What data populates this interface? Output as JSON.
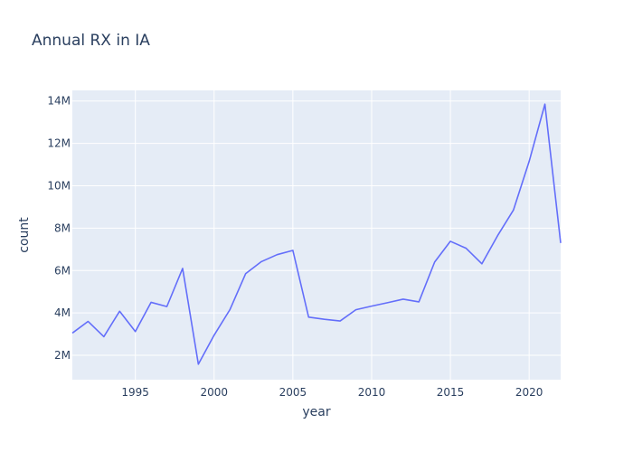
{
  "chart_data": {
    "type": "line",
    "title": "Annual RX in IA",
    "xlabel": "year",
    "ylabel": "count",
    "xlim": [
      1991,
      2022
    ],
    "ylim": [
      850000,
      14500000
    ],
    "x_ticks": [
      1995,
      2000,
      2005,
      2010,
      2015,
      2020
    ],
    "x_tick_labels": [
      "1995",
      "2000",
      "2005",
      "2010",
      "2015",
      "2020"
    ],
    "y_ticks": [
      2000000,
      4000000,
      6000000,
      8000000,
      10000000,
      12000000,
      14000000
    ],
    "y_tick_labels": [
      "2M",
      "4M",
      "6M",
      "8M",
      "10M",
      "12M",
      "14M"
    ],
    "grid": true,
    "legend": "none",
    "colors": {
      "plot_background": "#e5ecf6",
      "line": "#636efa",
      "text": "#2a3f5f"
    },
    "series": [
      {
        "x": [
          1991,
          1992,
          1993,
          1994,
          1995,
          1996,
          1997,
          1998,
          1999,
          2000,
          2001,
          2002,
          2003,
          2004,
          2005,
          2006,
          2007,
          2008,
          2009,
          2010,
          2011,
          2012,
          2013,
          2014,
          2015,
          2016,
          2017,
          2018,
          2019,
          2020,
          2021,
          2022
        ],
        "y": [
          3050000,
          3600000,
          2880000,
          4080000,
          3120000,
          4500000,
          4300000,
          6100000,
          1580000,
          2950000,
          4150000,
          5850000,
          6420000,
          6750000,
          6950000,
          3800000,
          3700000,
          3620000,
          4150000,
          4320000,
          4480000,
          4650000,
          4520000,
          6400000,
          7380000,
          7050000,
          6320000,
          7650000,
          8850000,
          11150000,
          13850000,
          7300000
        ]
      }
    ]
  }
}
